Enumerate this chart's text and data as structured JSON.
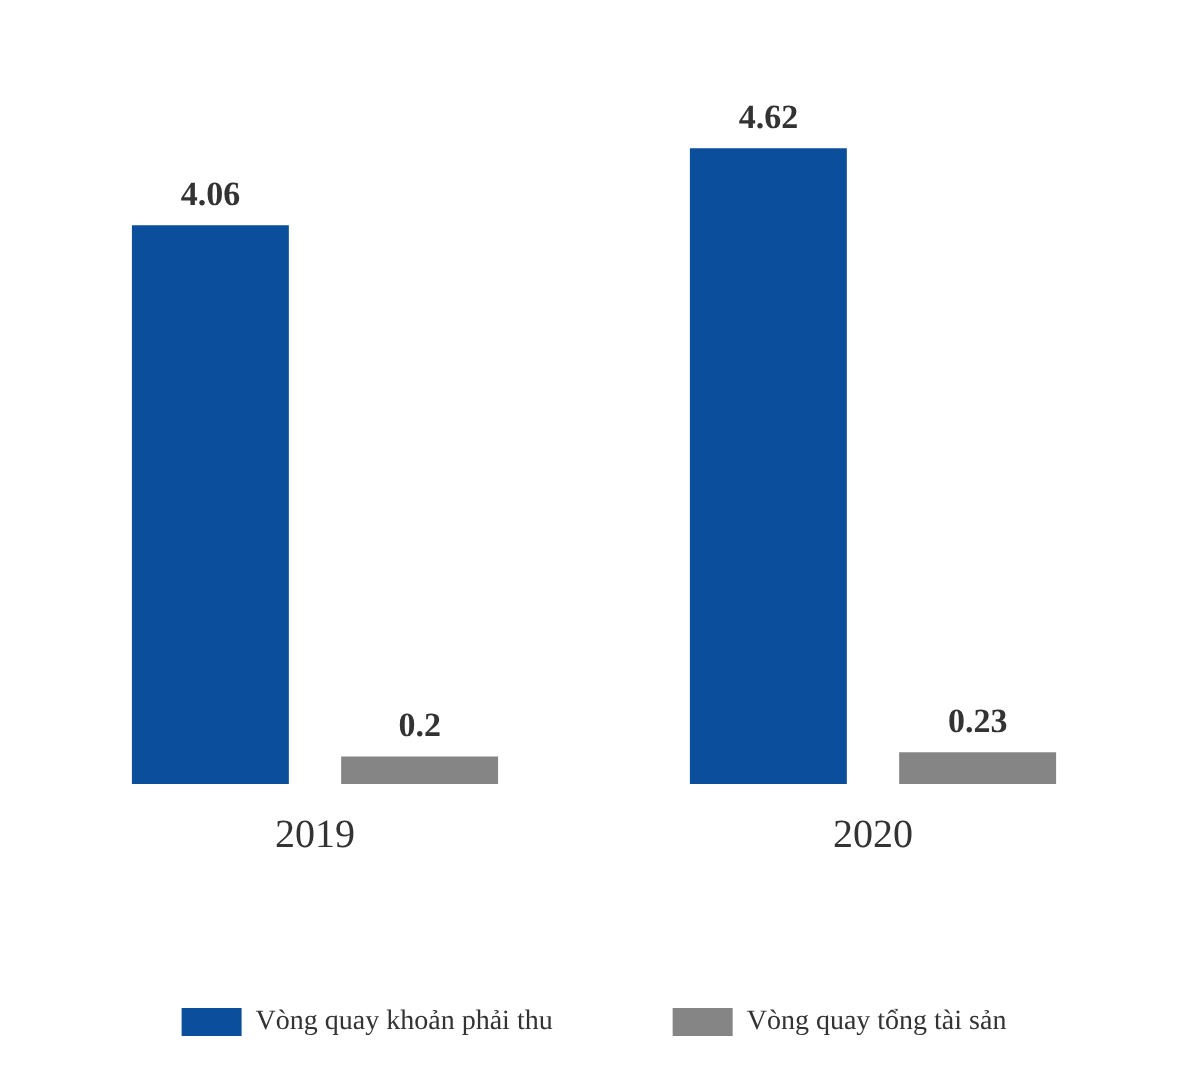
{
  "chart_data": {
    "type": "bar",
    "categories": [
      "2019",
      "2020"
    ],
    "series": [
      {
        "name": "Vòng quay khoản phải thu",
        "color": "#0b4f9c",
        "values": [
          4.06,
          4.62
        ]
      },
      {
        "name": "Vòng quay tổng tài sản",
        "color": "#868585",
        "values": [
          0.2,
          0.23
        ]
      }
    ],
    "data_labels": true,
    "grid": false,
    "legend": "bottom"
  }
}
